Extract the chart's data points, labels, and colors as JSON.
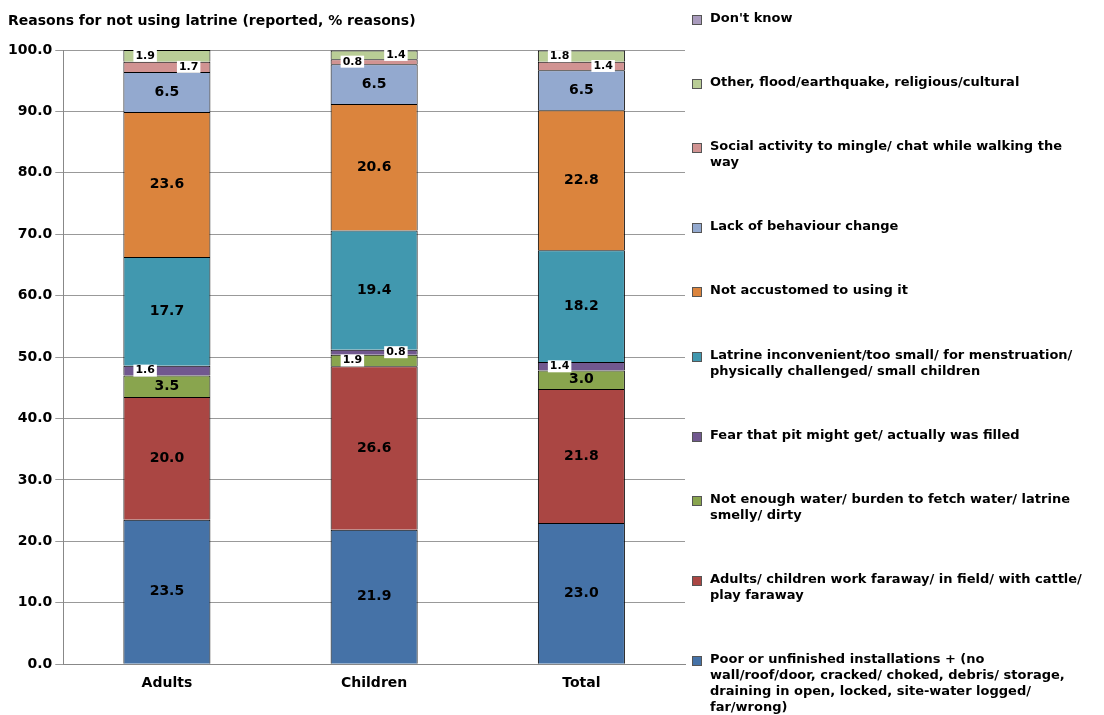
{
  "chart_data": {
    "type": "bar",
    "title": "Reasons for not using latrine (reported, % reasons)",
    "stacked": true,
    "legend": "right",
    "grid": "y",
    "categories": [
      "Adults",
      "Children",
      "Total"
    ],
    "ylim": [
      0,
      100
    ],
    "yticks": [
      {
        "value": 0,
        "label": "0.0"
      },
      {
        "value": 10,
        "label": "10.0"
      },
      {
        "value": 20,
        "label": "20.0"
      },
      {
        "value": 30,
        "label": "30.0"
      },
      {
        "value": 40,
        "label": "40.0"
      },
      {
        "value": 50,
        "label": "50.0"
      },
      {
        "value": 60,
        "label": "60.0"
      },
      {
        "value": 70,
        "label": "70.0"
      },
      {
        "value": 80,
        "label": "80.0"
      },
      {
        "value": 90,
        "label": "90.0"
      },
      {
        "value": 100,
        "label": "100.0"
      }
    ],
    "series": [
      {
        "name": "Poor or unfinished installations + (no wall/roof/door, cracked/ choked, debris/ storage, draining in open,  locked, site-water logged/ far/wrong)",
        "color": "#4572a7",
        "values": [
          23.5,
          21.9,
          23.0
        ],
        "value_labels": [
          "23.5",
          "21.9",
          "23.0"
        ]
      },
      {
        "name": "Adults/ children work faraway/  in field/ with cattle/  play faraway",
        "color": "#aa4643",
        "values": [
          20.0,
          26.6,
          21.8
        ],
        "value_labels": [
          "20.0",
          "26.6",
          "21.8"
        ]
      },
      {
        "name": "Not enough water/ burden to fetch water/ latrine smelly/ dirty",
        "color": "#89a54e",
        "values": [
          3.5,
          1.9,
          3.0
        ],
        "value_labels": [
          "3.5",
          "1.9",
          "3.0"
        ]
      },
      {
        "name": "Fear that pit might get/ actually was filled",
        "color": "#71588f",
        "values": [
          1.6,
          0.8,
          1.4
        ],
        "value_labels": [
          "1.6",
          "0.8",
          "1.4"
        ]
      },
      {
        "name": "Latrine inconvenient/too small/ for menstruation/ physically challenged/ small children",
        "color": "#4198af",
        "values": [
          17.7,
          19.4,
          18.2
        ],
        "value_labels": [
          "17.7",
          "19.4",
          "18.2"
        ]
      },
      {
        "name": "Not accustomed to using it",
        "color": "#db843d",
        "values": [
          23.6,
          20.6,
          22.8
        ],
        "value_labels": [
          "23.6",
          "20.6",
          "22.8"
        ]
      },
      {
        "name": "Lack of behaviour change",
        "color": "#93a9cf",
        "values": [
          6.5,
          6.5,
          6.5
        ],
        "value_labels": [
          "6.5",
          "6.5",
          "6.5"
        ]
      },
      {
        "name": "Social activity to mingle/ chat while walking the way",
        "color": "#d19392",
        "values": [
          1.7,
          0.8,
          1.4
        ],
        "value_labels": [
          "1.7",
          "0.8",
          "1.4"
        ]
      },
      {
        "name": "Other, flood/earthquake, religious/cultural",
        "color": "#b9cd96",
        "values": [
          1.9,
          1.4,
          1.8
        ],
        "value_labels": [
          "1.9",
          "1.4",
          "1.8"
        ]
      },
      {
        "name": "Don't know",
        "color": "#a99bbd",
        "values": [
          0,
          0.1,
          0.1
        ],
        "value_labels": [
          null,
          null,
          null
        ]
      }
    ]
  }
}
